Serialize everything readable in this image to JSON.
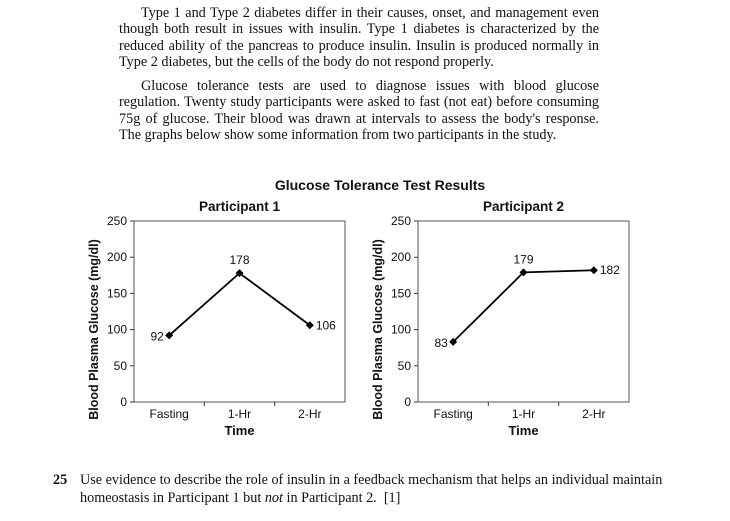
{
  "passage": {
    "paragraph1": "Type 1 and Type 2 diabetes differ in their causes, onset, and management even though both result in issues with insulin. Type 1 diabetes is characterized by the reduced ability of the pancreas to produce insulin. Insulin is produced normally in Type 2 diabetes, but the cells of the body do not respond properly.",
    "paragraph2": "Glucose tolerance tests are used to diagnose issues with blood glucose regulation. Twenty study participants were asked to fast (not eat) before consuming 75g of glucose. Their blood was drawn at intervals to assess the body's response. The graphs below show some information from two participants in the study."
  },
  "figure": {
    "title": "Glucose Tolerance Test Results"
  },
  "chart_data": [
    {
      "type": "line",
      "title": "Participant 1",
      "xlabel": "Time",
      "ylabel": "Blood Plasma Glucose (mg/dl)",
      "categories": [
        "Fasting",
        "1-Hr",
        "2-Hr"
      ],
      "values": [
        92,
        178,
        106
      ],
      "data_labels": [
        "92",
        "178",
        "106"
      ],
      "ylim": [
        0,
        250
      ],
      "yticks": [
        0,
        50,
        100,
        150,
        200,
        250
      ],
      "ytick_labels": [
        "0",
        "50",
        "100",
        "150",
        "200",
        "250"
      ],
      "grid": false
    },
    {
      "type": "line",
      "title": "Participant 2",
      "xlabel": "Time",
      "ylabel": "Blood Plasma Glucose (mg/dl)",
      "categories": [
        "Fasting",
        "1-Hr",
        "2-Hr"
      ],
      "values": [
        83,
        179,
        182
      ],
      "data_labels": [
        "83",
        "179",
        "182"
      ],
      "ylim": [
        0,
        250
      ],
      "yticks": [
        0,
        50,
        100,
        150,
        200,
        250
      ],
      "ytick_labels": [
        "0",
        "50",
        "100",
        "150",
        "200",
        "250"
      ],
      "grid": false
    }
  ],
  "question": {
    "number": "25",
    "text_before": "Use evidence to describe the role of insulin in a feedback mechanism that helps an individual maintain homeostasis in Participant 1 but ",
    "text_emphasis": "not",
    "text_after": " in Participant 2.",
    "points": "[1]"
  }
}
